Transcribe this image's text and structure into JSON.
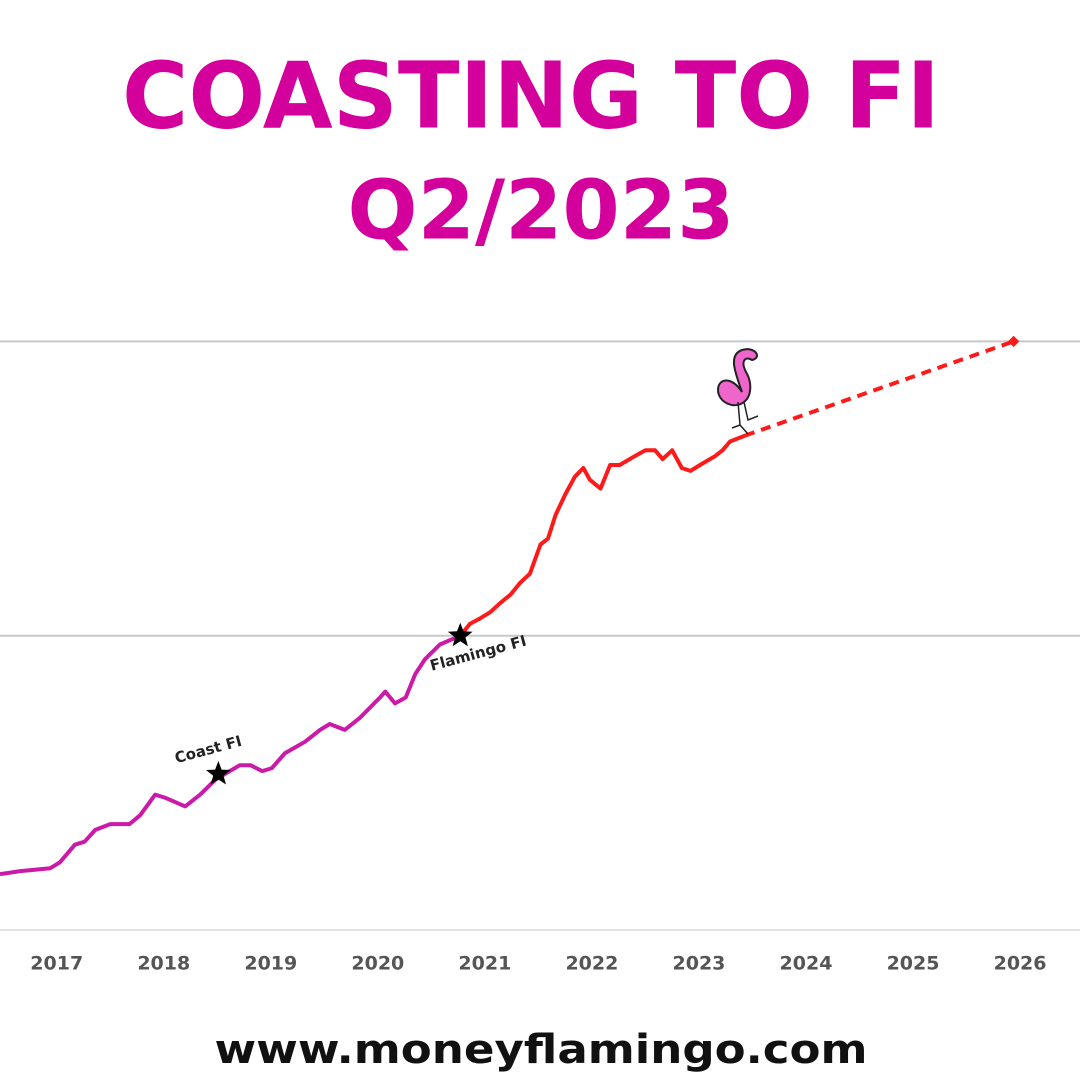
{
  "chart_data": {
    "type": "line",
    "title": "COASTING TO FI",
    "subtitle": "Q2/2023",
    "xlim": [
      2016.47,
      2026.56
    ],
    "xticks": [
      2017,
      2018,
      2019,
      2020,
      2021,
      2022,
      2023,
      2024,
      2025,
      2026
    ],
    "ylim": [
      0,
      2.1
    ],
    "yticks": [
      0,
      1,
      2
    ],
    "y_tick_labels": false,
    "grid": true,
    "series": [
      {
        "color": "#cc1aa8",
        "dashed": false,
        "x": [
          2016.47,
          2016.66,
          2016.94,
          2017.03,
          2017.17,
          2017.26,
          2017.36,
          2017.5,
          2017.68,
          2017.78,
          2017.92,
          2018.01,
          2018.2,
          2018.34,
          2018.48,
          2018.57,
          2018.71,
          2018.81,
          2018.92,
          2019.01,
          2019.13,
          2019.32,
          2019.46,
          2019.55,
          2019.69,
          2019.83,
          2020.02,
          2020.07,
          2020.16,
          2020.26,
          2020.35,
          2020.44,
          2020.58,
          2020.77
        ],
        "values": [
          0.19,
          0.2,
          0.21,
          0.23,
          0.29,
          0.3,
          0.34,
          0.36,
          0.36,
          0.39,
          0.46,
          0.45,
          0.42,
          0.46,
          0.51,
          0.53,
          0.56,
          0.56,
          0.54,
          0.55,
          0.6,
          0.64,
          0.68,
          0.7,
          0.68,
          0.72,
          0.79,
          0.81,
          0.77,
          0.79,
          0.87,
          0.92,
          0.97,
          1.0
        ]
      },
      {
        "color": "#ff1a1a",
        "dashed": false,
        "x": [
          2020.77,
          2020.86,
          2020.96,
          2021.05,
          2021.14,
          2021.24,
          2021.33,
          2021.42,
          2021.52,
          2021.59,
          2021.66,
          2021.75,
          2021.84,
          2021.92,
          2021.98,
          2022.08,
          2022.17,
          2022.26,
          2022.4,
          2022.5,
          2022.59,
          2022.66,
          2022.75,
          2022.84,
          2022.92,
          2023.01,
          2023.15,
          2023.22,
          2023.29,
          2023.43
        ],
        "values": [
          1.0,
          1.04,
          1.06,
          1.08,
          1.11,
          1.14,
          1.18,
          1.21,
          1.31,
          1.33,
          1.41,
          1.48,
          1.54,
          1.57,
          1.53,
          1.5,
          1.58,
          1.58,
          1.61,
          1.63,
          1.63,
          1.6,
          1.63,
          1.57,
          1.56,
          1.58,
          1.61,
          1.63,
          1.66,
          1.68
        ]
      },
      {
        "color": "#ff1a1a",
        "dashed": true,
        "x": [
          2023.43,
          2025.94
        ],
        "values": [
          1.68,
          2.0
        ]
      }
    ],
    "annotations": [
      {
        "label": "Coast FI",
        "x": 2018.51,
        "y": 0.53
      },
      {
        "label": "Flamingo FI",
        "x": 2020.77,
        "y": 1.0
      }
    ]
  },
  "footer": "www.moneyflamingo.com"
}
